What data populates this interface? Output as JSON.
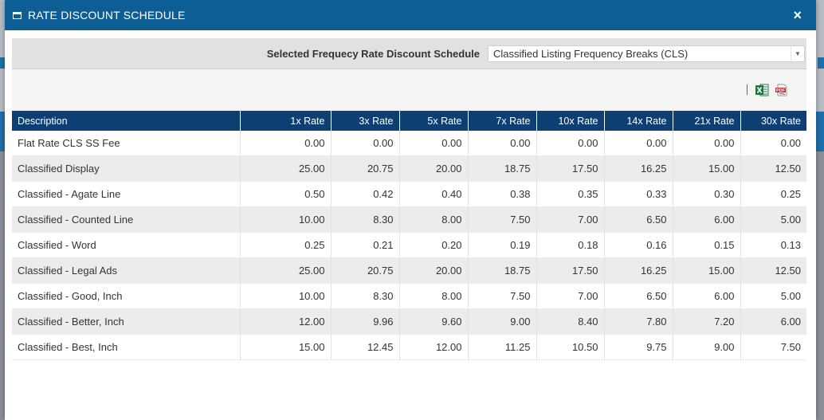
{
  "dialog": {
    "title": "RATE DISCOUNT SCHEDULE",
    "close_label": "×"
  },
  "selector": {
    "label": "Selected Frequecy Rate Discount Schedule",
    "value": "Classified Listing Frequency Breaks (CLS)"
  },
  "toolbar": {
    "excel_icon": "excel-icon",
    "pdf_icon": "pdf-icon",
    "pdf_text": "PDF"
  },
  "table": {
    "headers": [
      "Description",
      "1x Rate",
      "3x Rate",
      "5x Rate",
      "7x Rate",
      "10x Rate",
      "14x Rate",
      "21x Rate",
      "30x Rate"
    ],
    "rows": [
      [
        "Flat Rate CLS SS Fee",
        "0.00",
        "0.00",
        "0.00",
        "0.00",
        "0.00",
        "0.00",
        "0.00",
        "0.00"
      ],
      [
        "Classified Display",
        "25.00",
        "20.75",
        "20.00",
        "18.75",
        "17.50",
        "16.25",
        "15.00",
        "12.50"
      ],
      [
        "Classified - Agate Line",
        "0.50",
        "0.42",
        "0.40",
        "0.38",
        "0.35",
        "0.33",
        "0.30",
        "0.25"
      ],
      [
        "Classified - Counted Line",
        "10.00",
        "8.30",
        "8.00",
        "7.50",
        "7.00",
        "6.50",
        "6.00",
        "5.00"
      ],
      [
        "Classified - Word",
        "0.25",
        "0.21",
        "0.20",
        "0.19",
        "0.18",
        "0.16",
        "0.15",
        "0.13"
      ],
      [
        "Classified - Legal Ads",
        "25.00",
        "20.75",
        "20.00",
        "18.75",
        "17.50",
        "16.25",
        "15.00",
        "12.50"
      ],
      [
        "Classified - Good, Inch",
        "10.00",
        "8.30",
        "8.00",
        "7.50",
        "7.00",
        "6.50",
        "6.00",
        "5.00"
      ],
      [
        "Classified - Better, Inch",
        "12.00",
        "9.96",
        "9.60",
        "9.00",
        "8.40",
        "7.80",
        "7.20",
        "6.00"
      ],
      [
        "Classified - Best, Inch",
        "15.00",
        "12.45",
        "12.00",
        "11.25",
        "10.50",
        "9.75",
        "9.00",
        "7.50"
      ]
    ]
  },
  "colors": {
    "titlebar": "#0d5e95",
    "table_header": "#0e3f73",
    "excel_green": "#1d7a3a",
    "pdf_red": "#d7262b"
  }
}
